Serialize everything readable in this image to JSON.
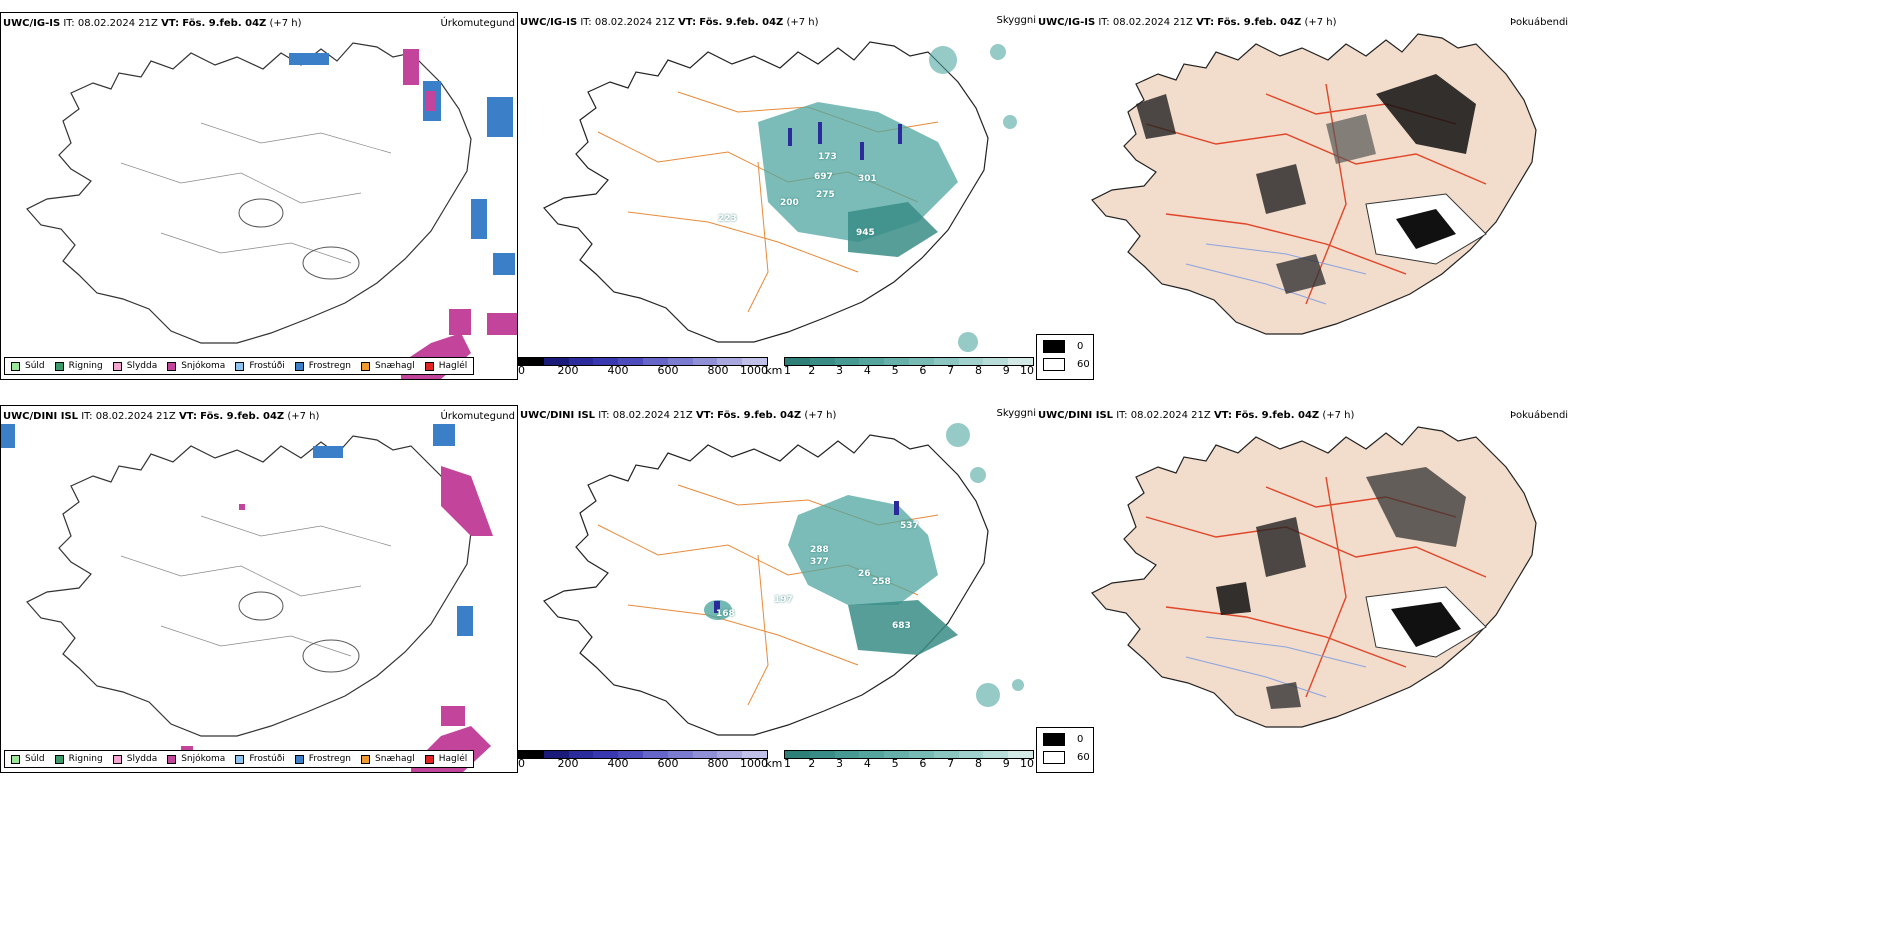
{
  "colors": {
    "coast": "#1a1a1a",
    "roads_orange": "#e88a3a",
    "roads_red": "#e0462a",
    "cloud_teal": "#4fa6a0",
    "snow_magenta": "#c2459b",
    "frost_blue": "#3a7fc8",
    "land_cream": "#f2dccb"
  },
  "rows": [
    {
      "title_model": "UWC/IG-IS",
      "title_it": "IT: 08.02.2024 21Z",
      "title_vt_label": "VT:",
      "title_vt": "Fös. 9.feb. 04Z",
      "title_offset": "(+7 h)",
      "precip_label": "Úrkomutegund",
      "ceiling_label": "Skyggni",
      "mist_label": "Þokuábendi",
      "ceiling_markers": [
        "173",
        "697",
        "275",
        "301",
        "200",
        "945",
        "223"
      ]
    },
    {
      "title_model": "UWC/DINI ISL",
      "title_it": "IT: 08.02.2024 21Z",
      "title_vt_label": "VT:",
      "title_vt": "Fös. 9.feb. 04Z",
      "title_offset": "(+7 h)",
      "precip_label": "Úrkomutegund",
      "ceiling_label": "Skyggni",
      "mist_label": "Þokuábendi",
      "ceiling_markers": [
        "537",
        "288",
        "377",
        "26",
        "258",
        "197",
        "168",
        "683"
      ]
    }
  ],
  "precip_legend": [
    {
      "label": "Súld",
      "color": "#9be89b"
    },
    {
      "label": "Rigning",
      "color": "#3b9a6a"
    },
    {
      "label": "Slydda",
      "color": "#f4a6d2"
    },
    {
      "label": "Snjókoma",
      "color": "#c2459b"
    },
    {
      "label": "Frostúði",
      "color": "#8ec3ef"
    },
    {
      "label": "Frostregn",
      "color": "#3a7fc8"
    },
    {
      "label": "Snæhagl",
      "color": "#f09a30"
    },
    {
      "label": "Haglél",
      "color": "#e02424"
    }
  ],
  "ceiling_scale": {
    "unit": "m",
    "ticks": [
      "0",
      "200",
      "400",
      "600",
      "800",
      "1000"
    ],
    "colors": [
      "#000000",
      "#1a1a7a",
      "#2b2b9c",
      "#3838b0",
      "#4c4cbd",
      "#6666c8",
      "#7b7bcf",
      "#9090d6",
      "#a8a8df",
      "#c0c0e8"
    ]
  },
  "visibility_scale": {
    "unit": "km",
    "ticks": [
      "1",
      "2",
      "3",
      "4",
      "5",
      "6",
      "7",
      "8",
      "9",
      "10"
    ],
    "colors": [
      "#2e7f78",
      "#3a8d86",
      "#479a93",
      "#55a59e",
      "#66b0a9",
      "#78bbb4",
      "#8cc6c0",
      "#a1d1cc",
      "#b8dcd8",
      "#d2e9e6"
    ]
  },
  "mist_legend": [
    {
      "label": "0",
      "color": "#000000"
    },
    {
      "label": "60",
      "color": "#ffffff"
    }
  ]
}
